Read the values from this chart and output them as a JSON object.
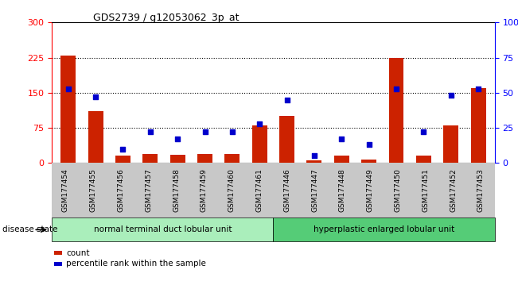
{
  "title": "GDS2739 / g12053062_3p_at",
  "categories": [
    "GSM177454",
    "GSM177455",
    "GSM177456",
    "GSM177457",
    "GSM177458",
    "GSM177459",
    "GSM177460",
    "GSM177461",
    "GSM177446",
    "GSM177447",
    "GSM177448",
    "GSM177449",
    "GSM177450",
    "GSM177451",
    "GSM177452",
    "GSM177453"
  ],
  "counts": [
    230,
    110,
    15,
    20,
    18,
    20,
    20,
    80,
    100,
    5,
    15,
    8,
    225,
    15,
    80,
    160
  ],
  "percentiles": [
    53,
    47,
    10,
    22,
    17,
    22,
    22,
    28,
    45,
    5,
    17,
    13,
    53,
    22,
    48,
    53
  ],
  "group1_label": "normal terminal duct lobular unit",
  "group2_label": "hyperplastic enlarged lobular unit",
  "disease_state_label": "disease state",
  "left_ylim": [
    0,
    300
  ],
  "right_ylim": [
    0,
    100
  ],
  "left_yticks": [
    0,
    75,
    150,
    225,
    300
  ],
  "right_yticks": [
    0,
    25,
    50,
    75,
    100
  ],
  "bar_color": "#cc2200",
  "dot_color": "#0000cc",
  "group1_color": "#aaeebb",
  "group2_color": "#55cc77",
  "bar_width": 0.55,
  "legend_count_label": "count",
  "legend_pct_label": "percentile rank within the sample",
  "gridline_color": "#000000",
  "bg_gray": "#c8c8c8"
}
